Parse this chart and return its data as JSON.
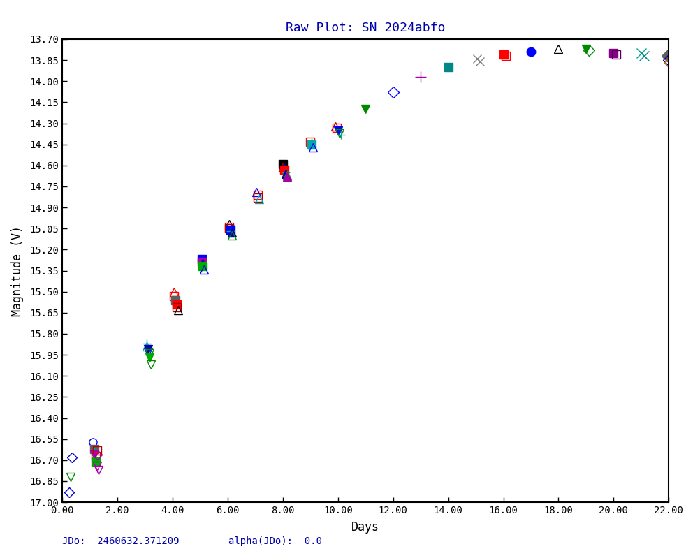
{
  "title": "Raw Plot: SN 2024abfo",
  "xlabel": "Days",
  "ylabel": "Magnitude (V)",
  "footer_left": "JDo:  2460632.371209",
  "footer_right": "alpha(JDo):  0.0",
  "xlim": [
    0.0,
    22.0
  ],
  "ylim": [
    17.0,
    13.7
  ],
  "xticks": [
    0.0,
    2.0,
    4.0,
    6.0,
    8.0,
    10.0,
    12.0,
    14.0,
    16.0,
    18.0,
    20.0,
    22.0
  ],
  "yticks": [
    13.7,
    13.85,
    14.0,
    14.15,
    14.3,
    14.45,
    14.6,
    14.75,
    14.9,
    15.05,
    15.2,
    15.35,
    15.5,
    15.65,
    15.8,
    15.95,
    16.1,
    16.25,
    16.4,
    16.55,
    16.7,
    16.85,
    17.0
  ],
  "series": [
    {
      "x": [
        0.25
      ],
      "y": [
        16.93
      ],
      "color": "#0000cc",
      "marker": "D",
      "ms": 7,
      "mfc": "none"
    },
    {
      "x": [
        0.3
      ],
      "y": [
        16.82
      ],
      "color": "#008800",
      "marker": "v",
      "ms": 8,
      "mfc": "none"
    },
    {
      "x": [
        0.35
      ],
      "y": [
        16.68
      ],
      "color": "#0000cc",
      "marker": "D",
      "ms": 7,
      "mfc": "none"
    },
    {
      "x": [
        1.1
      ],
      "y": [
        16.57
      ],
      "color": "#0000ff",
      "marker": "o",
      "ms": 8,
      "mfc": "none"
    },
    {
      "x": [
        1.15
      ],
      "y": [
        16.62
      ],
      "color": "#606060",
      "marker": "s",
      "ms": 8,
      "mfc": "#606060"
    },
    {
      "x": [
        1.15
      ],
      "y": [
        16.64
      ],
      "color": "#00aaaa",
      "marker": "+",
      "ms": 9,
      "mfc": "none"
    },
    {
      "x": [
        1.15
      ],
      "y": [
        16.66
      ],
      "color": "#aa00aa",
      "marker": "v",
      "ms": 8,
      "mfc": "#aa00aa"
    },
    {
      "x": [
        1.2
      ],
      "y": [
        16.67
      ],
      "color": "#ff0000",
      "marker": "s",
      "ms": 8,
      "mfc": "none"
    },
    {
      "x": [
        1.2
      ],
      "y": [
        16.69
      ],
      "color": "#0000ff",
      "marker": "+",
      "ms": 9,
      "mfc": "none"
    },
    {
      "x": [
        1.2
      ],
      "y": [
        16.71
      ],
      "color": "#00aa00",
      "marker": "s",
      "ms": 8,
      "mfc": "#00aa00"
    },
    {
      "x": [
        1.25
      ],
      "y": [
        16.63
      ],
      "color": "#aa0000",
      "marker": "s",
      "ms": 8,
      "mfc": "none"
    },
    {
      "x": [
        1.25
      ],
      "y": [
        16.66
      ],
      "color": "#aa00aa",
      "marker": "D",
      "ms": 7,
      "mfc": "none"
    },
    {
      "x": [
        1.25
      ],
      "y": [
        16.74
      ],
      "color": "#aa00aa",
      "marker": "v",
      "ms": 8,
      "mfc": "none"
    },
    {
      "x": [
        1.3
      ],
      "y": [
        16.77
      ],
      "color": "#aa00aa",
      "marker": "v",
      "ms": 8,
      "mfc": "none"
    },
    {
      "x": [
        3.05
      ],
      "y": [
        15.87
      ],
      "color": "#00aaaa",
      "marker": "+",
      "ms": 9,
      "mfc": "none"
    },
    {
      "x": [
        3.05
      ],
      "y": [
        15.89
      ],
      "color": "#00aaaa",
      "marker": "^",
      "ms": 8,
      "mfc": "none"
    },
    {
      "x": [
        3.1
      ],
      "y": [
        15.91
      ],
      "color": "#0000aa",
      "marker": "v",
      "ms": 8,
      "mfc": "#0000aa"
    },
    {
      "x": [
        3.1
      ],
      "y": [
        15.93
      ],
      "color": "#0000ff",
      "marker": "v",
      "ms": 8,
      "mfc": "none"
    },
    {
      "x": [
        3.15
      ],
      "y": [
        15.94
      ],
      "color": "#008800",
      "marker": "v",
      "ms": 8,
      "mfc": "none"
    },
    {
      "x": [
        3.15
      ],
      "y": [
        15.97
      ],
      "color": "#00aa00",
      "marker": "v",
      "ms": 8,
      "mfc": "#00aa00"
    },
    {
      "x": [
        3.2
      ],
      "y": [
        16.02
      ],
      "color": "#008800",
      "marker": "v",
      "ms": 8,
      "mfc": "none"
    },
    {
      "x": [
        4.05
      ],
      "y": [
        15.5
      ],
      "color": "#ff0000",
      "marker": "^",
      "ms": 8,
      "mfc": "none"
    },
    {
      "x": [
        4.05
      ],
      "y": [
        15.53
      ],
      "color": "#ff0000",
      "marker": "s",
      "ms": 8,
      "mfc": "none"
    },
    {
      "x": [
        4.1
      ],
      "y": [
        15.56
      ],
      "color": "#606060",
      "marker": "s",
      "ms": 8,
      "mfc": "#606060"
    },
    {
      "x": [
        4.15
      ],
      "y": [
        15.59
      ],
      "color": "#ff0000",
      "marker": "s",
      "ms": 8,
      "mfc": "#ff0000"
    },
    {
      "x": [
        4.15
      ],
      "y": [
        15.61
      ],
      "color": "#aa0000",
      "marker": "s",
      "ms": 8,
      "mfc": "none"
    },
    {
      "x": [
        4.2
      ],
      "y": [
        15.63
      ],
      "color": "#000000",
      "marker": "^",
      "ms": 8,
      "mfc": "none"
    },
    {
      "x": [
        5.05
      ],
      "y": [
        15.27
      ],
      "color": "#0000ff",
      "marker": "s",
      "ms": 8,
      "mfc": "#0000ff"
    },
    {
      "x": [
        5.05
      ],
      "y": [
        15.29
      ],
      "color": "#aa00aa",
      "marker": "s",
      "ms": 8,
      "mfc": "#aa00aa"
    },
    {
      "x": [
        5.1
      ],
      "y": [
        15.3
      ],
      "color": "#0000aa",
      "marker": "^",
      "ms": 8,
      "mfc": "#0000aa"
    },
    {
      "x": [
        5.1
      ],
      "y": [
        15.32
      ],
      "color": "#00aa00",
      "marker": "s",
      "ms": 8,
      "mfc": "#00aa00"
    },
    {
      "x": [
        5.15
      ],
      "y": [
        15.34
      ],
      "color": "#0000ff",
      "marker": "^",
      "ms": 8,
      "mfc": "none"
    },
    {
      "x": [
        6.05
      ],
      "y": [
        15.02
      ],
      "color": "#000000",
      "marker": "^",
      "ms": 8,
      "mfc": "none"
    },
    {
      "x": [
        6.05
      ],
      "y": [
        15.04
      ],
      "color": "#ff0000",
      "marker": "s",
      "ms": 8,
      "mfc": "none"
    },
    {
      "x": [
        6.05
      ],
      "y": [
        15.05
      ],
      "color": "#aa0000",
      "marker": "s",
      "ms": 8,
      "mfc": "none"
    },
    {
      "x": [
        6.1
      ],
      "y": [
        15.06
      ],
      "color": "#0000ff",
      "marker": "s",
      "ms": 8,
      "mfc": "#0000ff"
    },
    {
      "x": [
        6.1
      ],
      "y": [
        15.07
      ],
      "color": "#00aaaa",
      "marker": "+",
      "ms": 9,
      "mfc": "none"
    },
    {
      "x": [
        6.15
      ],
      "y": [
        15.08
      ],
      "color": "#0000aa",
      "marker": "^",
      "ms": 8,
      "mfc": "#0000aa"
    },
    {
      "x": [
        6.15
      ],
      "y": [
        15.1
      ],
      "color": "#008800",
      "marker": "^",
      "ms": 8,
      "mfc": "none"
    },
    {
      "x": [
        7.05
      ],
      "y": [
        14.79
      ],
      "color": "#0000ff",
      "marker": "^",
      "ms": 8,
      "mfc": "none"
    },
    {
      "x": [
        7.1
      ],
      "y": [
        14.81
      ],
      "color": "#ff0000",
      "marker": "s",
      "ms": 8,
      "mfc": "none"
    },
    {
      "x": [
        7.1
      ],
      "y": [
        14.83
      ],
      "color": "#aa0000",
      "marker": "s",
      "ms": 8,
      "mfc": "none"
    },
    {
      "x": [
        7.15
      ],
      "y": [
        14.84
      ],
      "color": "#00aaaa",
      "marker": "^",
      "ms": 8,
      "mfc": "none"
    },
    {
      "x": [
        8.0
      ],
      "y": [
        14.59
      ],
      "color": "#000000",
      "marker": "s",
      "ms": 8,
      "mfc": "#000000"
    },
    {
      "x": [
        8.0
      ],
      "y": [
        14.61
      ],
      "color": "#aa0000",
      "marker": "^",
      "ms": 8,
      "mfc": "none"
    },
    {
      "x": [
        8.05
      ],
      "y": [
        14.62
      ],
      "color": "#0000ff",
      "marker": "^",
      "ms": 8,
      "mfc": "none"
    },
    {
      "x": [
        8.05
      ],
      "y": [
        14.63
      ],
      "color": "#ff0000",
      "marker": "s",
      "ms": 8,
      "mfc": "#ff0000"
    },
    {
      "x": [
        8.1
      ],
      "y": [
        14.65
      ],
      "color": "#00aaaa",
      "marker": "+",
      "ms": 9,
      "mfc": "none"
    },
    {
      "x": [
        8.1
      ],
      "y": [
        14.66
      ],
      "color": "#0000aa",
      "marker": "^",
      "ms": 8,
      "mfc": "#0000aa"
    },
    {
      "x": [
        8.15
      ],
      "y": [
        14.67
      ],
      "color": "#00aa00",
      "marker": "^",
      "ms": 8,
      "mfc": "#00aa00"
    },
    {
      "x": [
        8.15
      ],
      "y": [
        14.68
      ],
      "color": "#aa00aa",
      "marker": "^",
      "ms": 8,
      "mfc": "#aa00aa"
    },
    {
      "x": [
        9.0
      ],
      "y": [
        14.43
      ],
      "color": "#ff0000",
      "marker": "s",
      "ms": 8,
      "mfc": "none"
    },
    {
      "x": [
        9.05
      ],
      "y": [
        14.44
      ],
      "color": "#00aa00",
      "marker": "^",
      "ms": 8,
      "mfc": "none"
    },
    {
      "x": [
        9.05
      ],
      "y": [
        14.45
      ],
      "color": "#00aaaa",
      "marker": "s",
      "ms": 8,
      "mfc": "#00aaaa"
    },
    {
      "x": [
        9.1
      ],
      "y": [
        14.47
      ],
      "color": "#0000ff",
      "marker": "^",
      "ms": 8,
      "mfc": "none"
    },
    {
      "x": [
        9.9
      ],
      "y": [
        14.32
      ],
      "color": "#aa0000",
      "marker": "^",
      "ms": 8,
      "mfc": "none"
    },
    {
      "x": [
        9.95
      ],
      "y": [
        14.33
      ],
      "color": "#ff0000",
      "marker": "s",
      "ms": 8,
      "mfc": "none"
    },
    {
      "x": [
        10.0
      ],
      "y": [
        14.35
      ],
      "color": "#0000ff",
      "marker": "v",
      "ms": 8,
      "mfc": "#0000ff"
    },
    {
      "x": [
        10.05
      ],
      "y": [
        14.37
      ],
      "color": "#008800",
      "marker": "v",
      "ms": 8,
      "mfc": "none"
    },
    {
      "x": [
        10.1
      ],
      "y": [
        14.38
      ],
      "color": "#00aaaa",
      "marker": "+",
      "ms": 9,
      "mfc": "none"
    },
    {
      "x": [
        11.0
      ],
      "y": [
        14.2
      ],
      "color": "#008800",
      "marker": "v",
      "ms": 8,
      "mfc": "#008800"
    },
    {
      "x": [
        12.0
      ],
      "y": [
        14.08
      ],
      "color": "#0000ff",
      "marker": "D",
      "ms": 8,
      "mfc": "none"
    },
    {
      "x": [
        13.0
      ],
      "y": [
        13.97
      ],
      "color": "#aa00aa",
      "marker": "+",
      "ms": 11,
      "mfc": "none"
    },
    {
      "x": [
        14.0
      ],
      "y": [
        13.9
      ],
      "color": "#008888",
      "marker": "s",
      "ms": 9,
      "mfc": "#008888"
    },
    {
      "x": [
        15.05
      ],
      "y": [
        13.84
      ],
      "color": "#808080",
      "marker": "x",
      "ms": 9,
      "mfc": "none"
    },
    {
      "x": [
        15.15
      ],
      "y": [
        13.86
      ],
      "color": "#808080",
      "marker": "x",
      "ms": 9,
      "mfc": "none"
    },
    {
      "x": [
        16.0
      ],
      "y": [
        13.81
      ],
      "color": "#ff0000",
      "marker": "s",
      "ms": 9,
      "mfc": "#ff0000"
    },
    {
      "x": [
        16.1
      ],
      "y": [
        13.82
      ],
      "color": "#ff0000",
      "marker": "s",
      "ms": 9,
      "mfc": "none"
    },
    {
      "x": [
        17.0
      ],
      "y": [
        13.79
      ],
      "color": "#0000ff",
      "marker": "o",
      "ms": 9,
      "mfc": "#0000ff"
    },
    {
      "x": [
        18.0
      ],
      "y": [
        13.77
      ],
      "color": "#000000",
      "marker": "^",
      "ms": 9,
      "mfc": "none"
    },
    {
      "x": [
        19.0
      ],
      "y": [
        13.77
      ],
      "color": "#008800",
      "marker": "v",
      "ms": 9,
      "mfc": "#008800"
    },
    {
      "x": [
        19.1
      ],
      "y": [
        13.78
      ],
      "color": "#008800",
      "marker": "D",
      "ms": 8,
      "mfc": "none"
    },
    {
      "x": [
        20.0
      ],
      "y": [
        13.8
      ],
      "color": "#880088",
      "marker": "s",
      "ms": 9,
      "mfc": "#880088"
    },
    {
      "x": [
        20.1
      ],
      "y": [
        13.81
      ],
      "color": "#550055",
      "marker": "s",
      "ms": 9,
      "mfc": "none"
    },
    {
      "x": [
        21.0
      ],
      "y": [
        13.8
      ],
      "color": "#00aa88",
      "marker": "x",
      "ms": 10,
      "mfc": "none"
    },
    {
      "x": [
        21.1
      ],
      "y": [
        13.82
      ],
      "color": "#008888",
      "marker": "x",
      "ms": 10,
      "mfc": "none"
    },
    {
      "x": [
        21.95
      ],
      "y": [
        13.82
      ],
      "color": "#606060",
      "marker": "D",
      "ms": 8,
      "mfc": "#606060"
    },
    {
      "x": [
        22.0
      ],
      "y": [
        13.85
      ],
      "color": "#0000aa",
      "marker": "D",
      "ms": 8,
      "mfc": "none"
    },
    {
      "x": [
        22.05
      ],
      "y": [
        13.87
      ],
      "color": "#cc6600",
      "marker": "D",
      "ms": 8,
      "mfc": "none"
    }
  ],
  "background_color": "#ffffff",
  "title_color": "#0000aa",
  "axis_color": "#000000",
  "tick_color": "#000000",
  "label_color": "#000000",
  "footer_color": "#0000aa",
  "tick_fontsize": 10,
  "label_fontsize": 12,
  "title_fontsize": 13
}
